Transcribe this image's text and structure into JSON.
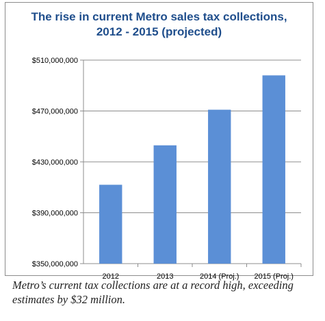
{
  "chart_data": {
    "type": "bar",
    "title_lines": [
      "The rise in current Metro sales tax collections,",
      "2012 - 2015 (projected)"
    ],
    "categories": [
      "2012",
      "2013",
      "2014 (Proj.)",
      "2015 (Proj.)"
    ],
    "values": [
      412000000,
      443000000,
      471000000,
      498000000
    ],
    "ylim": [
      350000000,
      510000000
    ],
    "yticks": [
      350000000,
      390000000,
      430000000,
      470000000,
      510000000
    ],
    "ytick_labels": [
      "$350,000,000",
      "$390,000,000",
      "$430,000,000",
      "$470,000,000",
      "$510,000,000"
    ],
    "xlabel": "",
    "ylabel": "",
    "grid": true,
    "legend": "none",
    "bar_color": "#5b8fd6",
    "title_color": "#1f4e8c"
  },
  "caption": "Metro’s current tax collections are at a record high, exceeding estimates by $32 million."
}
